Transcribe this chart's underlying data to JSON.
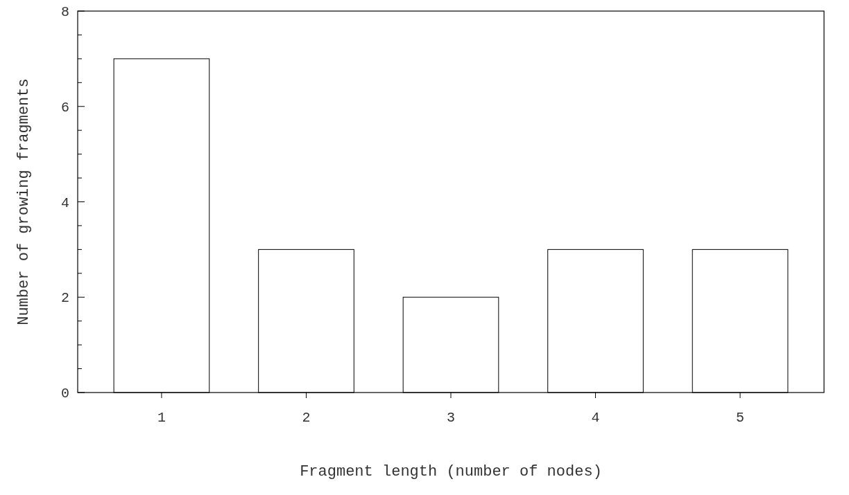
{
  "chart_data": {
    "type": "bar",
    "xlabel": "Fragment length (number of nodes)",
    "ylabel": "Number of growing fragments",
    "categories": [
      "1",
      "2",
      "3",
      "4",
      "5"
    ],
    "values": [
      7,
      3,
      2,
      3,
      3
    ],
    "color": "#ffffff",
    "ylim": [
      0,
      8
    ],
    "yticks": [
      0,
      {
        "value": 0.5,
        "label": null
      },
      {
        "value": 1,
        "label": null
      },
      {
        "value": 1.5,
        "label": null
      },
      2,
      {
        "value": 2.5,
        "label": null
      },
      {
        "value": 3,
        "label": null
      },
      {
        "value": 3.5,
        "label": null
      },
      4,
      {
        "value": 4.5,
        "label": null
      },
      {
        "value": 5,
        "label": null
      },
      {
        "value": 5.5,
        "label": null
      },
      6,
      {
        "value": 6.5,
        "label": null
      },
      {
        "value": 7,
        "label": null
      },
      {
        "value": 7.5,
        "label": null
      },
      8
    ],
    "grid": false
  }
}
